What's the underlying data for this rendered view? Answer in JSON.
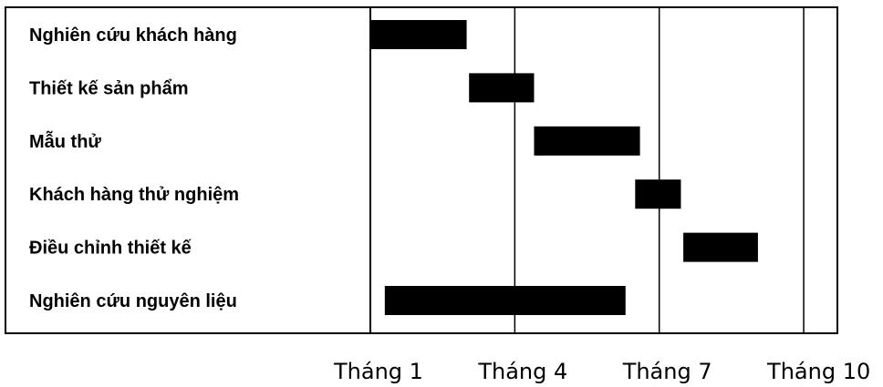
{
  "chart_data": {
    "type": "bar",
    "orientation": "horizontal",
    "subtype": "gantt",
    "title": "",
    "xlabel": "",
    "ylabel": "",
    "x_unit": "month",
    "xlim": [
      1,
      10.7
    ],
    "x_ticks": [
      {
        "value": 1,
        "label": "Tháng 1"
      },
      {
        "value": 4,
        "label": "Tháng 4"
      },
      {
        "value": 7,
        "label": "Tháng 7"
      },
      {
        "value": 10,
        "label": "Tháng 10"
      }
    ],
    "grid": "vertical lines at tick months",
    "legend": "none",
    "bar_color": "#000000",
    "tasks": [
      {
        "label": "Nghiên cứu khách hàng",
        "start": 1,
        "end": 3
      },
      {
        "label": "Thiết kế sản phẩm",
        "start": 3.05,
        "end": 4.4
      },
      {
        "label": "Mẫu thử",
        "start": 4.4,
        "end": 6.6
      },
      {
        "label": "Khách hàng thử nghiệm",
        "start": 6.5,
        "end": 7.45
      },
      {
        "label": "Điều chỉnh thiết kế",
        "start": 7.5,
        "end": 9.05
      },
      {
        "label": "Nghiên cứu nguyên liệu",
        "start": 1.3,
        "end": 6.3
      }
    ]
  }
}
